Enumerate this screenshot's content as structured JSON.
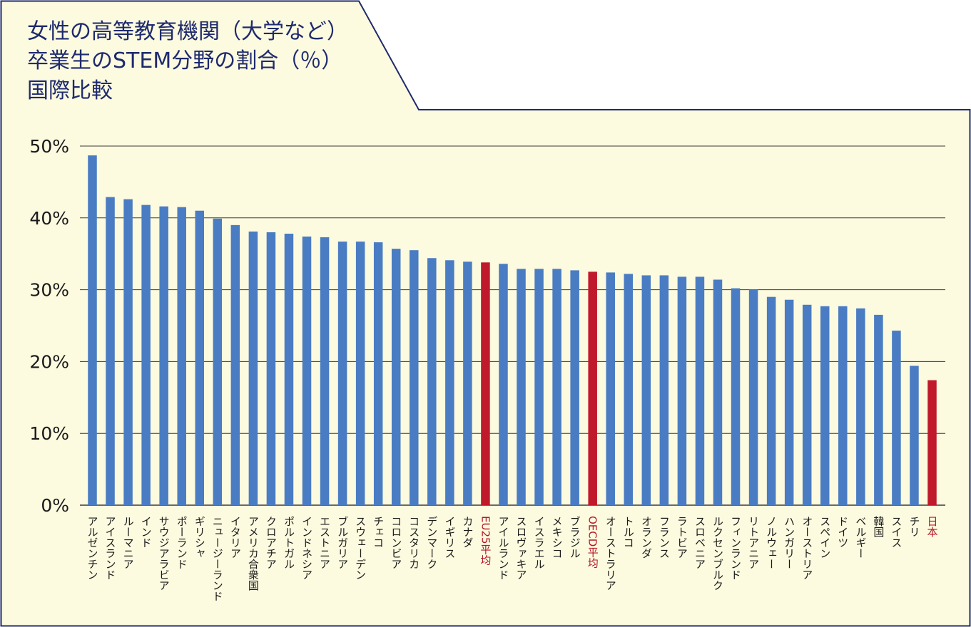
{
  "chart_data": {
    "type": "bar",
    "title_lines": [
      "女性の高等教育機関（大学など）",
      "卒業生のSTEM分野の割合（％）",
      "国際比較"
    ],
    "yticks": [
      "0%",
      "10%",
      "20%",
      "30%",
      "40%",
      "50%"
    ],
    "ylim": [
      0,
      50
    ],
    "grid": true,
    "categories": [
      "アルゼンチン",
      "アイスランド",
      "ルーマニア",
      "インド",
      "サウジアラビア",
      "ポーランド",
      "ギリシャ",
      "ニュージーランド",
      "イタリア",
      "アメリカ合衆国",
      "クロアチア",
      "ポルトガル",
      "インドネシア",
      "エストニア",
      "ブルガリア",
      "スウェーデン",
      "チェコ",
      "コロンビア",
      "コスタリカ",
      "デンマーク",
      "イギリス",
      "カナダ",
      "EU25平均",
      "アイルランド",
      "スロヴァキア",
      "イスラエル",
      "メキシコ",
      "ブラジル",
      "OECD平均",
      "オーストラリア",
      "トルコ",
      "オランダ",
      "フランス",
      "ラトビア",
      "スロベニア",
      "ルクセンブルク",
      "フィンランド",
      "リトアニア",
      "ノルウェー",
      "ハンガリー",
      "オーストリア",
      "スペイン",
      "ドイツ",
      "ベルギー",
      "韓国",
      "スイス",
      "チリ",
      "日本"
    ],
    "values": [
      48.7,
      42.9,
      42.6,
      41.8,
      41.6,
      41.5,
      41.0,
      39.9,
      39.0,
      38.1,
      38.0,
      37.8,
      37.4,
      37.3,
      36.7,
      36.7,
      36.6,
      35.7,
      35.5,
      34.4,
      34.1,
      33.9,
      33.8,
      33.6,
      32.9,
      32.9,
      32.9,
      32.7,
      32.5,
      32.4,
      32.2,
      32.0,
      32.0,
      31.8,
      31.8,
      31.4,
      30.2,
      30.0,
      29.0,
      28.6,
      27.9,
      27.7,
      27.7,
      27.4,
      26.5,
      24.3,
      19.4,
      17.4
    ],
    "highlight": [
      "EU25平均",
      "OECD平均",
      "日本"
    ],
    "colors": {
      "bar": "#4a7cc3",
      "highlight_bar": "#c0192c",
      "highlight_label": "#b3172a",
      "label": "#1a1a1a",
      "grid": "#3a3a3a",
      "background": "#fcfadf",
      "border": "#1e2a6e"
    }
  }
}
